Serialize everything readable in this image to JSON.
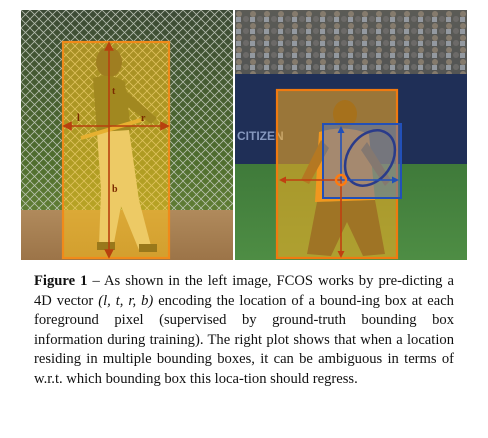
{
  "figure": {
    "left_panel": {
      "arrow_labels": {
        "l": "l",
        "t": "t",
        "r": "r",
        "b": "b"
      }
    },
    "caption": {
      "label": "Figure 1",
      "sep": " – ",
      "t1": "As shown in the left image, FCOS works by pre-dicting a 4D vector ",
      "math": "(l, t, r, b)",
      "t2": " encoding the location of a bound-ing box at each foreground pixel (supervised by ground-truth bounding box information during training). The right plot shows that when a location residing in multiple bounding boxes, it can be ambiguous in terms of w.r.t. which bounding box this loca-tion should regress."
    }
  }
}
